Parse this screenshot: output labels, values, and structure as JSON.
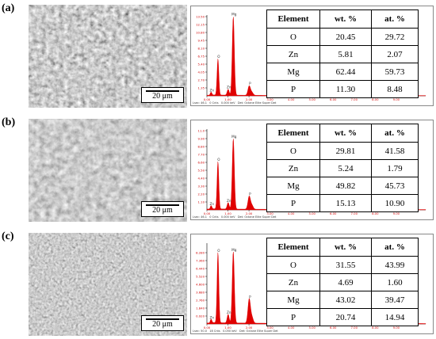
{
  "scalebar_label": "20 μm",
  "footer": {
    "lsec_label": "Lsec:",
    "cnts_label": "Cnts",
    "kev_label": "keV",
    "det": "Det: Octane Elite Super Det"
  },
  "colors": {
    "spectrum": "#e00000",
    "label_text": "#d00000",
    "axis": "#000000"
  },
  "panels": [
    {
      "label": "(a)",
      "footer_values": {
        "lsec": "46.1",
        "cnts": "0",
        "kev": "0.000"
      },
      "table": {
        "headers": [
          "Element",
          "wt. %",
          "at. %"
        ],
        "rows": [
          [
            "O",
            "20.45",
            "29.72"
          ],
          [
            "Zn",
            "5.81",
            "2.07"
          ],
          [
            "Mg",
            "62.44",
            "59.73"
          ],
          [
            "P",
            "11.30",
            "8.48"
          ]
        ]
      }
    },
    {
      "label": "(b)",
      "footer_values": {
        "lsec": "46.1",
        "cnts": "0",
        "kev": "0.000"
      },
      "table": {
        "headers": [
          "Element",
          "wt. %",
          "at. %"
        ],
        "rows": [
          [
            "O",
            "29.81",
            "41.58"
          ],
          [
            "Zn",
            "5.24",
            "1.79"
          ],
          [
            "Mg",
            "49.82",
            "45.73"
          ],
          [
            "P",
            "15.13",
            "10.90"
          ]
        ]
      }
    },
    {
      "label": "(c)",
      "footer_values": {
        "lsec": "50.0",
        "cnts": "18",
        "kev": "0.050"
      },
      "table": {
        "headers": [
          "Element",
          "wt. %",
          "at. %"
        ],
        "rows": [
          [
            "O",
            "31.55",
            "43.99"
          ],
          [
            "Zn",
            "4.69",
            "1.60"
          ],
          [
            "Mg",
            "43.02",
            "39.47"
          ],
          [
            "P",
            "20.74",
            "14.94"
          ]
        ]
      }
    }
  ],
  "chart_data": [
    {
      "type": "area",
      "xlabel": "",
      "ylabel": "",
      "xlim": [
        0,
        10.4
      ],
      "ylim": [
        0,
        13.5
      ],
      "x_ticks": [
        "0.00",
        "1.00",
        "2.00",
        "3.00",
        "4.00",
        "5.00",
        "6.00",
        "7.00",
        "8.00",
        "9.00"
      ],
      "y_ticks": [
        "1.35",
        "2.70",
        "4.05",
        "5.40",
        "6.75",
        "8.10",
        "9.45",
        "10.80",
        "12.15",
        "13.50"
      ],
      "peaks": [
        {
          "label": "Zn",
          "energy": 0.2,
          "height": 0.5
        },
        {
          "label": "O",
          "energy": 0.525,
          "height": 6.2
        },
        {
          "label": "Zn",
          "energy": 1.01,
          "height": 1.0
        },
        {
          "label": "Mg",
          "energy": 1.254,
          "height": 13.4
        },
        {
          "label": "P",
          "energy": 2.01,
          "height": 1.6
        },
        {
          "label": "",
          "energy": 2.14,
          "height": 0.5
        },
        {
          "label": "Zn",
          "energy": 8.63,
          "height": 0.05
        },
        {
          "label": "Zn",
          "energy": 9.57,
          "height": 0.04
        }
      ]
    },
    {
      "type": "area",
      "xlabel": "",
      "ylabel": "",
      "xlim": [
        0,
        10.4
      ],
      "ylim": [
        0,
        11.0
      ],
      "x_ticks": [
        "0.00",
        "1.00",
        "2.00",
        "3.00",
        "4.00",
        "5.00",
        "6.00",
        "7.00",
        "8.00",
        "9.00"
      ],
      "y_ticks": [
        "1.10",
        "2.20",
        "3.30",
        "4.40",
        "5.50",
        "6.60",
        "7.70",
        "8.80",
        "9.90",
        "11.0"
      ],
      "peaks": [
        {
          "label": "Zn",
          "energy": 0.2,
          "height": 0.45
        },
        {
          "label": "O",
          "energy": 0.525,
          "height": 6.6
        },
        {
          "label": "Zn",
          "energy": 1.01,
          "height": 0.9
        },
        {
          "label": "Mg",
          "energy": 1.254,
          "height": 9.8
        },
        {
          "label": "P",
          "energy": 2.01,
          "height": 1.8
        },
        {
          "label": "",
          "energy": 2.14,
          "height": 0.55
        },
        {
          "label": "Zn",
          "energy": 8.63,
          "height": 0.05
        },
        {
          "label": "Zn",
          "energy": 9.57,
          "height": 0.04
        }
      ]
    },
    {
      "type": "area",
      "xlabel": "",
      "ylabel": "",
      "xlim": [
        0,
        10.4
      ],
      "ylim": [
        0,
        9.2
      ],
      "x_ticks": [
        "0.00",
        "1.00",
        "2.00",
        "3.00",
        "4.00",
        "5.00",
        "6.00",
        "7.00",
        "8.00",
        "9.00"
      ],
      "y_ticks": [
        "0.920",
        "1.840",
        "2.760",
        "3.680",
        "4.600",
        "5.520",
        "6.440",
        "7.360",
        "8.280"
      ],
      "peaks": [
        {
          "label": "Zn",
          "energy": 0.2,
          "height": 0.4
        },
        {
          "label": "O",
          "energy": 0.525,
          "height": 8.2
        },
        {
          "label": "Zn",
          "energy": 1.01,
          "height": 1.0
        },
        {
          "label": "Mg",
          "energy": 1.254,
          "height": 8.3
        },
        {
          "label": "P",
          "energy": 2.01,
          "height": 2.8
        },
        {
          "label": "",
          "energy": 2.14,
          "height": 0.7
        },
        {
          "label": "Zn",
          "energy": 8.63,
          "height": 0.05
        },
        {
          "label": "Zn",
          "energy": 9.57,
          "height": 0.04
        }
      ]
    }
  ]
}
